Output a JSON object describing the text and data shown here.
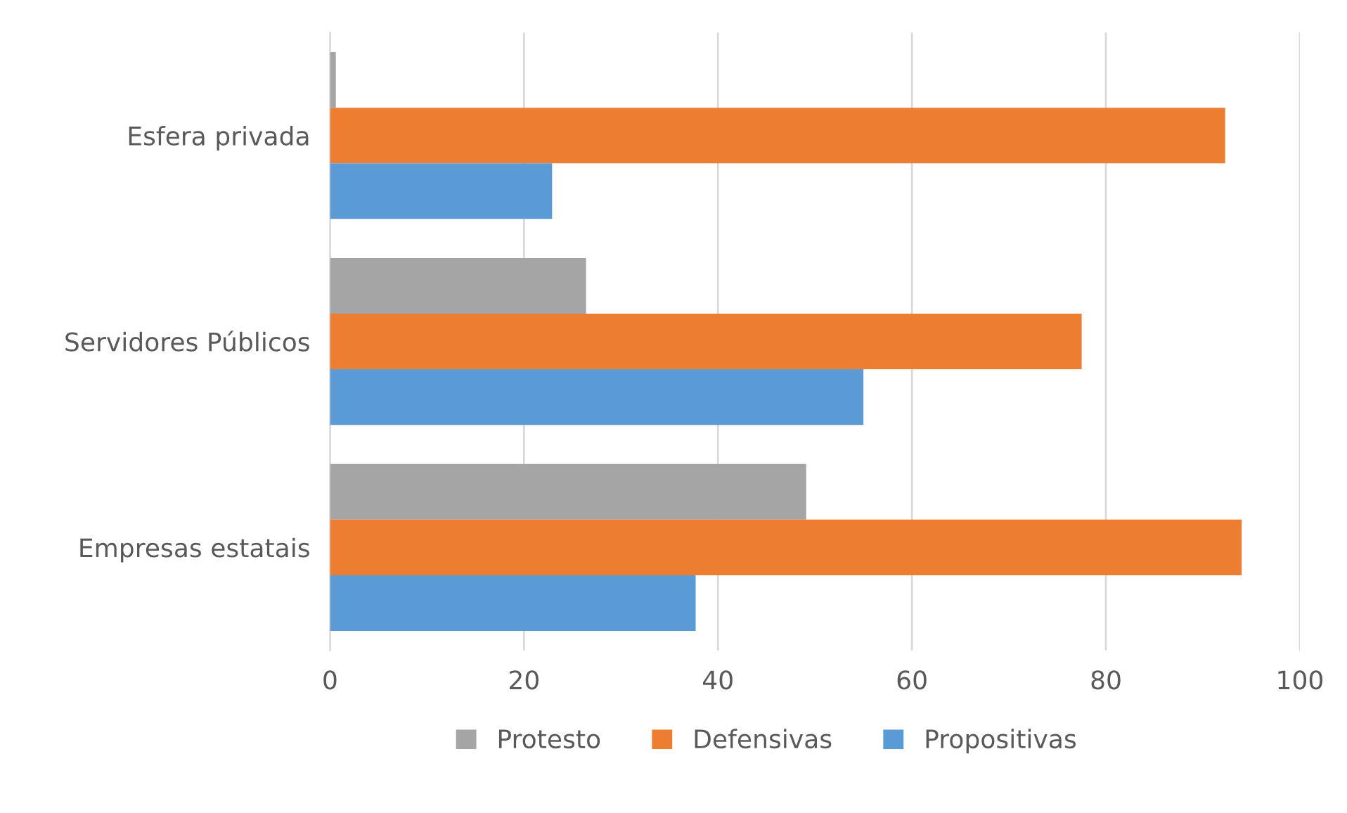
{
  "chart_data": {
    "type": "bar",
    "orientation": "horizontal",
    "categories": [
      "Esfera privada",
      "Servidores Públicos",
      "Empresas estatais"
    ],
    "series": [
      {
        "name": "Protesto",
        "color": "#a5a5a5",
        "values": [
          0.6,
          26.4,
          49.1
        ]
      },
      {
        "name": "Defensivas",
        "color": "#ed7d31",
        "values": [
          92.3,
          77.5,
          94.0
        ]
      },
      {
        "name": "Propositivas",
        "color": "#5b9bd5",
        "values": [
          22.9,
          55.0,
          37.7
        ]
      }
    ],
    "xlim": [
      0,
      100
    ],
    "xticks": [
      0,
      20,
      40,
      60,
      80,
      100
    ],
    "grid": "x",
    "legend": "bottom"
  }
}
